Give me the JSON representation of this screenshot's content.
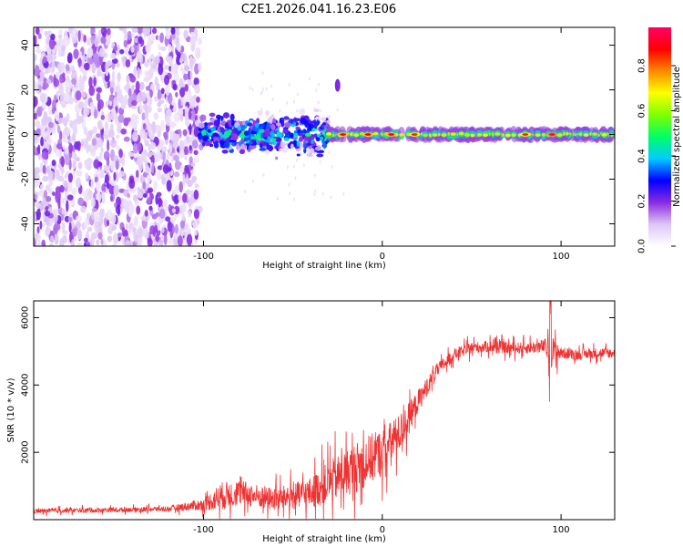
{
  "title": "C2E1.2026.041.16.23.E06",
  "chart_data": [
    {
      "type": "heatmap",
      "title": "C2E1.2026.041.16.23.E06",
      "xlabel": "Height of straight line (km)",
      "ylabel": "Frequency (Hz)",
      "xlim": [
        -195,
        130
      ],
      "ylim": [
        -50,
        48
      ],
      "xticks": [
        -100,
        0,
        100
      ],
      "xtick_labels": [
        "-100",
        "0",
        "100"
      ],
      "yticks": [
        40,
        20,
        0,
        -20,
        -40
      ],
      "ytick_labels": [
        "40",
        "20",
        "0",
        "-20",
        "-40"
      ],
      "colorbar": {
        "label": "Normalized spectral amplitude",
        "range": [
          0,
          0.97
        ],
        "ticks": [
          0,
          0.2,
          0.4,
          0.6,
          0.8
        ],
        "tick_labels": [
          "0.0",
          "0.2",
          "0.4",
          "0.6",
          "0.8"
        ],
        "colors": [
          "#ffffff",
          "#ddc6f5",
          "#8a2be2",
          "#0000ff",
          "#00ccff",
          "#00ff66",
          "#80ff00",
          "#ffff00",
          "#ff8800",
          "#ff0000",
          "#ff0066"
        ]
      },
      "regions": [
        {
          "name": "noise",
          "x_range": [
            -195,
            -102
          ],
          "freq_range": [
            -50,
            48
          ],
          "amplitude": 0.08
        },
        {
          "name": "transition",
          "x_range": [
            -102,
            -30
          ],
          "freq_range": [
            -8,
            8
          ],
          "amplitude": 0.3
        },
        {
          "name": "carrier",
          "x_range": [
            -30,
            130
          ],
          "freq_range": [
            -2.5,
            2.5
          ],
          "amplitude": 0.65
        }
      ],
      "features": [
        {
          "x": -25,
          "freq": 22,
          "amplitude": 0.2
        },
        {
          "x": -22,
          "freq": 0,
          "amplitude": 0.9
        },
        {
          "x": -8,
          "freq": 0,
          "amplitude": 0.9
        },
        {
          "x": 5,
          "freq": 0,
          "amplitude": 0.9
        },
        {
          "x": 18,
          "freq": 0,
          "amplitude": 0.85
        },
        {
          "x": 80,
          "freq": 0,
          "amplitude": 0.85
        },
        {
          "x": 95,
          "freq": 0,
          "amplitude": 0.95
        }
      ]
    },
    {
      "type": "line",
      "xlabel": "Height of straight line (km)",
      "ylabel": "SNR (10 * v/v)",
      "xlim": [
        -195,
        130
      ],
      "ylim": [
        0,
        6500
      ],
      "xticks": [
        -100,
        0,
        100
      ],
      "xtick_labels": [
        "-100",
        "0",
        "100"
      ],
      "yticks": [
        2000,
        4000,
        6000
      ],
      "ytick_labels": [
        "2000",
        "4000",
        "6000"
      ],
      "color": "#ee3333",
      "series": [
        {
          "name": "SNR",
          "x": [
            -195,
            -180,
            -160,
            -140,
            -120,
            -100,
            -90,
            -80,
            -70,
            -60,
            -50,
            -40,
            -30,
            -20,
            -10,
            0,
            10,
            20,
            30,
            40,
            50,
            60,
            70,
            80,
            90,
            95,
            100,
            110,
            120,
            130
          ],
          "mean": [
            250,
            270,
            280,
            300,
            320,
            450,
            700,
            800,
            700,
            600,
            700,
            800,
            1100,
            1400,
            1700,
            2000,
            2600,
            3500,
            4400,
            4900,
            5100,
            5150,
            5100,
            5100,
            5150,
            5000,
            4950,
            4900,
            4950,
            4950
          ],
          "spread": [
            100,
            100,
            100,
            100,
            110,
            250,
            600,
            550,
            500,
            500,
            550,
            650,
            900,
            1000,
            1100,
            1000,
            800,
            500,
            300,
            250,
            250,
            250,
            250,
            250,
            300,
            700,
            250,
            220,
            220,
            220
          ]
        }
      ]
    }
  ]
}
